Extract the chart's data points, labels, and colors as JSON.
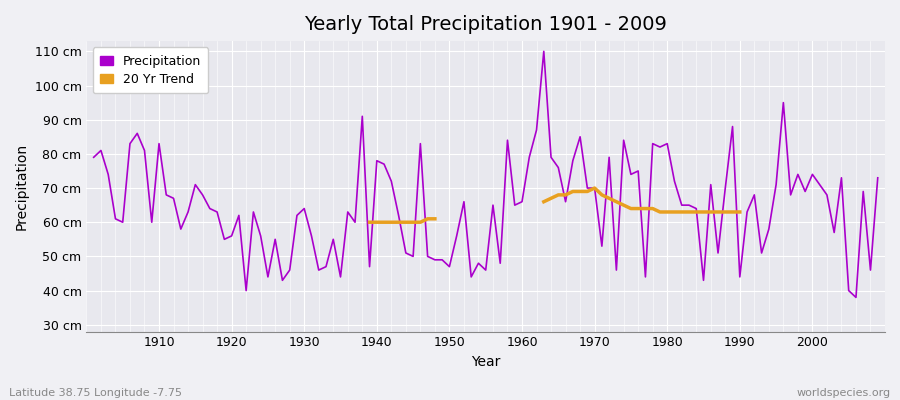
{
  "title": "Yearly Total Precipitation 1901 - 2009",
  "xlabel": "Year",
  "ylabel": "Precipitation",
  "subtitle_left": "Latitude 38.75 Longitude -7.75",
  "subtitle_right": "worldspecies.org",
  "ylim": [
    28,
    113
  ],
  "yticks": [
    30,
    40,
    50,
    60,
    70,
    80,
    90,
    100,
    110
  ],
  "ytick_labels": [
    "30 cm",
    "40 cm",
    "50 cm",
    "60 cm",
    "70 cm",
    "80 cm",
    "90 cm",
    "100 cm",
    "110 cm"
  ],
  "bg_color": "#f0f0f4",
  "plot_bg_color": "#e8e8ee",
  "line_color": "#aa00cc",
  "trend_color": "#e8a020",
  "years": [
    1901,
    1902,
    1903,
    1904,
    1905,
    1906,
    1907,
    1908,
    1909,
    1910,
    1911,
    1912,
    1913,
    1914,
    1915,
    1916,
    1917,
    1918,
    1919,
    1920,
    1921,
    1922,
    1923,
    1924,
    1925,
    1926,
    1927,
    1928,
    1929,
    1930,
    1931,
    1932,
    1933,
    1934,
    1935,
    1936,
    1937,
    1938,
    1939,
    1940,
    1941,
    1942,
    1943,
    1944,
    1945,
    1946,
    1947,
    1948,
    1949,
    1950,
    1951,
    1952,
    1953,
    1954,
    1955,
    1956,
    1957,
    1958,
    1959,
    1960,
    1961,
    1962,
    1963,
    1964,
    1965,
    1966,
    1967,
    1968,
    1969,
    1970,
    1971,
    1972,
    1973,
    1974,
    1975,
    1976,
    1977,
    1978,
    1979,
    1980,
    1981,
    1982,
    1983,
    1984,
    1985,
    1986,
    1987,
    1988,
    1989,
    1990,
    1991,
    1992,
    1993,
    1994,
    1995,
    1996,
    1997,
    1998,
    1999,
    2000,
    2001,
    2002,
    2003,
    2004,
    2005,
    2006,
    2007,
    2008,
    2009
  ],
  "precip": [
    79,
    81,
    74,
    61,
    60,
    83,
    86,
    81,
    60,
    83,
    68,
    67,
    58,
    63,
    71,
    68,
    64,
    63,
    55,
    56,
    62,
    40,
    63,
    56,
    44,
    55,
    43,
    46,
    62,
    64,
    56,
    46,
    47,
    55,
    44,
    63,
    60,
    91,
    47,
    78,
    77,
    72,
    62,
    51,
    50,
    83,
    50,
    49,
    49,
    47,
    56,
    66,
    44,
    48,
    46,
    65,
    48,
    84,
    65,
    66,
    79,
    87,
    110,
    79,
    76,
    66,
    78,
    85,
    70,
    70,
    53,
    79,
    46,
    84,
    74,
    75,
    44,
    83,
    82,
    83,
    72,
    65,
    65,
    64,
    43,
    71,
    51,
    70,
    88,
    44,
    63,
    68,
    51,
    58,
    71,
    95,
    68,
    74,
    69,
    74,
    71,
    68,
    57,
    73,
    40,
    38,
    69,
    46,
    73
  ],
  "trend_seg1_years": [
    1939,
    1940,
    1941,
    1942,
    1943,
    1944,
    1945,
    1946,
    1947,
    1948
  ],
  "trend_seg1_values": [
    60,
    60,
    60,
    60,
    60,
    60,
    60,
    60,
    61,
    61
  ],
  "trend_seg2_years": [
    1963,
    1964,
    1965,
    1966,
    1967,
    1968,
    1969,
    1970,
    1971,
    1972,
    1973,
    1974,
    1975,
    1976,
    1977,
    1978,
    1979,
    1980,
    1981,
    1982,
    1983,
    1984,
    1985,
    1986,
    1987,
    1988,
    1989,
    1990
  ],
  "trend_seg2_values": [
    66,
    67,
    68,
    68,
    69,
    69,
    69,
    70,
    68,
    67,
    66,
    65,
    64,
    64,
    64,
    64,
    63,
    63,
    63,
    63,
    63,
    63,
    63,
    63,
    63,
    63,
    63,
    63
  ],
  "xlim": [
    1900,
    2010
  ],
  "xticks": [
    1910,
    1920,
    1930,
    1940,
    1950,
    1960,
    1970,
    1980,
    1990,
    2000
  ]
}
